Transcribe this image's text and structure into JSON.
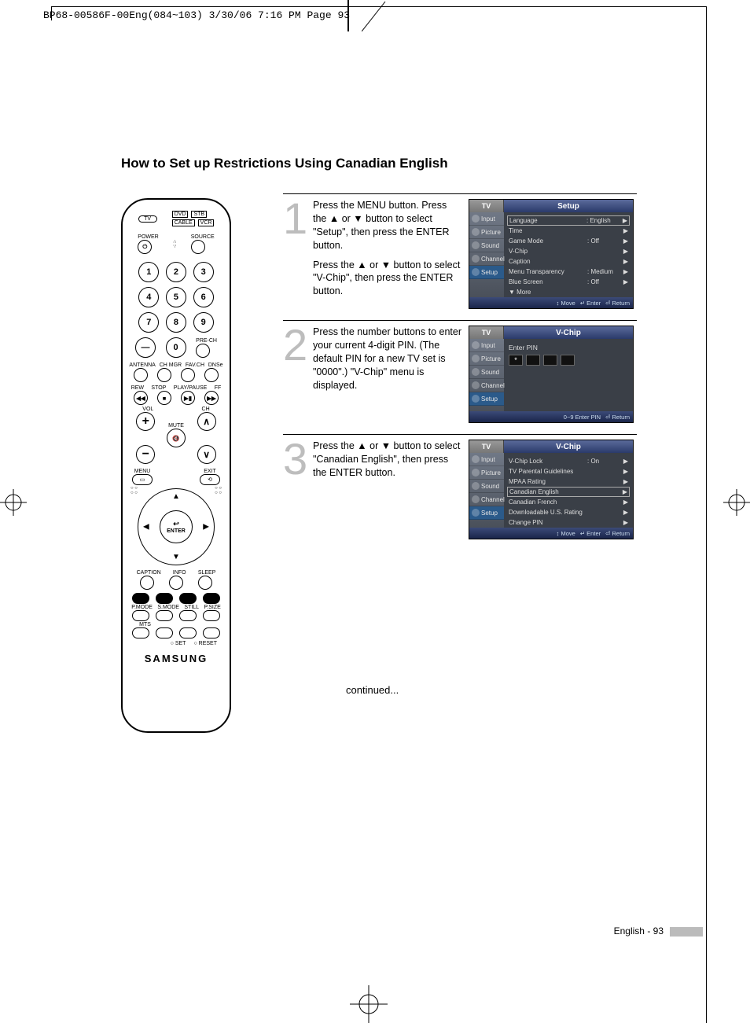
{
  "header_line": "BP68-00586F-00Eng(084~103)  3/30/06  7:16 PM  Page 93",
  "title": "How to Set up Restrictions Using Canadian English",
  "remote": {
    "tv": "TV",
    "dvd": "DVD",
    "stb": "STB",
    "cable": "CABLE",
    "vcr": "VCR",
    "power": "POWER",
    "source": "SOURCE",
    "nums": [
      "1",
      "2",
      "3",
      "4",
      "5",
      "6",
      "7",
      "8",
      "9",
      "0"
    ],
    "dash": "—",
    "prech": "PRE-CH",
    "antenna": "ANTENNA",
    "chmgr": "CH MGR",
    "favch": "FAV.CH",
    "dnse": "DNSe",
    "rew": "REW",
    "stop": "STOP",
    "playpause": "PLAY/PAUSE",
    "ff": "FF",
    "vol": "VOL",
    "ch": "CH",
    "mute": "MUTE",
    "menu": "MENU",
    "exit": "EXIT",
    "enter": "ENTER",
    "enter_icon": "↩",
    "caption": "CAPTION",
    "info": "INFO",
    "sleep": "SLEEP",
    "pmode": "P.MODE",
    "smode": "S.MODE",
    "still": "STILL",
    "psize": "P.SIZE",
    "mts": "MTS",
    "set": "SET",
    "reset": "RESET",
    "brand": "SAMSUNG"
  },
  "steps": [
    {
      "n": "1",
      "paras": [
        "Press the MENU button. Press the ▲ or ▼ button to select \"Setup\", then press the ENTER button.",
        "Press the ▲ or ▼ button to select \"V-Chip\", then press the ENTER button."
      ],
      "osd": {
        "title": "Setup",
        "footer": [
          "↕ Move",
          "↵ Enter",
          "⏎ Return"
        ],
        "rows": [
          {
            "k": "Language",
            "v": ": English",
            "boxed": true
          },
          {
            "k": "Time",
            "v": ""
          },
          {
            "k": "Game Mode",
            "v": ": Off"
          },
          {
            "k": "V-Chip",
            "v": ""
          },
          {
            "k": "Caption",
            "v": ""
          },
          {
            "k": "Menu Transparency",
            "v": ": Medium"
          },
          {
            "k": "Blue Screen",
            "v": ": Off"
          },
          {
            "k": "▼ More",
            "v": "",
            "noar": true
          }
        ]
      }
    },
    {
      "n": "2",
      "paras": [
        "Press the number buttons to enter your current 4-digit PIN. (The default PIN for a new TV set is \"0000\".) \"V-Chip\" menu is displayed."
      ],
      "osd": {
        "title": "V-Chip",
        "pin_label": "Enter PIN",
        "pin_first": "*",
        "footer": [
          "0~9 Enter PIN",
          "⏎ Return"
        ]
      }
    },
    {
      "n": "3",
      "paras": [
        "Press the ▲ or ▼ button to select \"Canadian English\", then press the ENTER button."
      ],
      "osd": {
        "title": "V-Chip",
        "footer": [
          "↕ Move",
          "↵ Enter",
          "⏎ Return"
        ],
        "rows": [
          {
            "k": "V-Chip Lock",
            "v": ": On"
          },
          {
            "k": "TV Parental Guidelines",
            "v": ""
          },
          {
            "k": "MPAA Rating",
            "v": ""
          },
          {
            "k": "Canadian English",
            "v": "",
            "boxed": true
          },
          {
            "k": "Canadian French",
            "v": ""
          },
          {
            "k": "Downloadable U.S. Rating",
            "v": ""
          },
          {
            "k": "Change PIN",
            "v": ""
          }
        ]
      }
    }
  ],
  "side_tabs": [
    "Input",
    "Picture",
    "Sound",
    "Channel",
    "Setup"
  ],
  "tv_tab": "TV",
  "continued": "continued...",
  "footer": "English - 93"
}
